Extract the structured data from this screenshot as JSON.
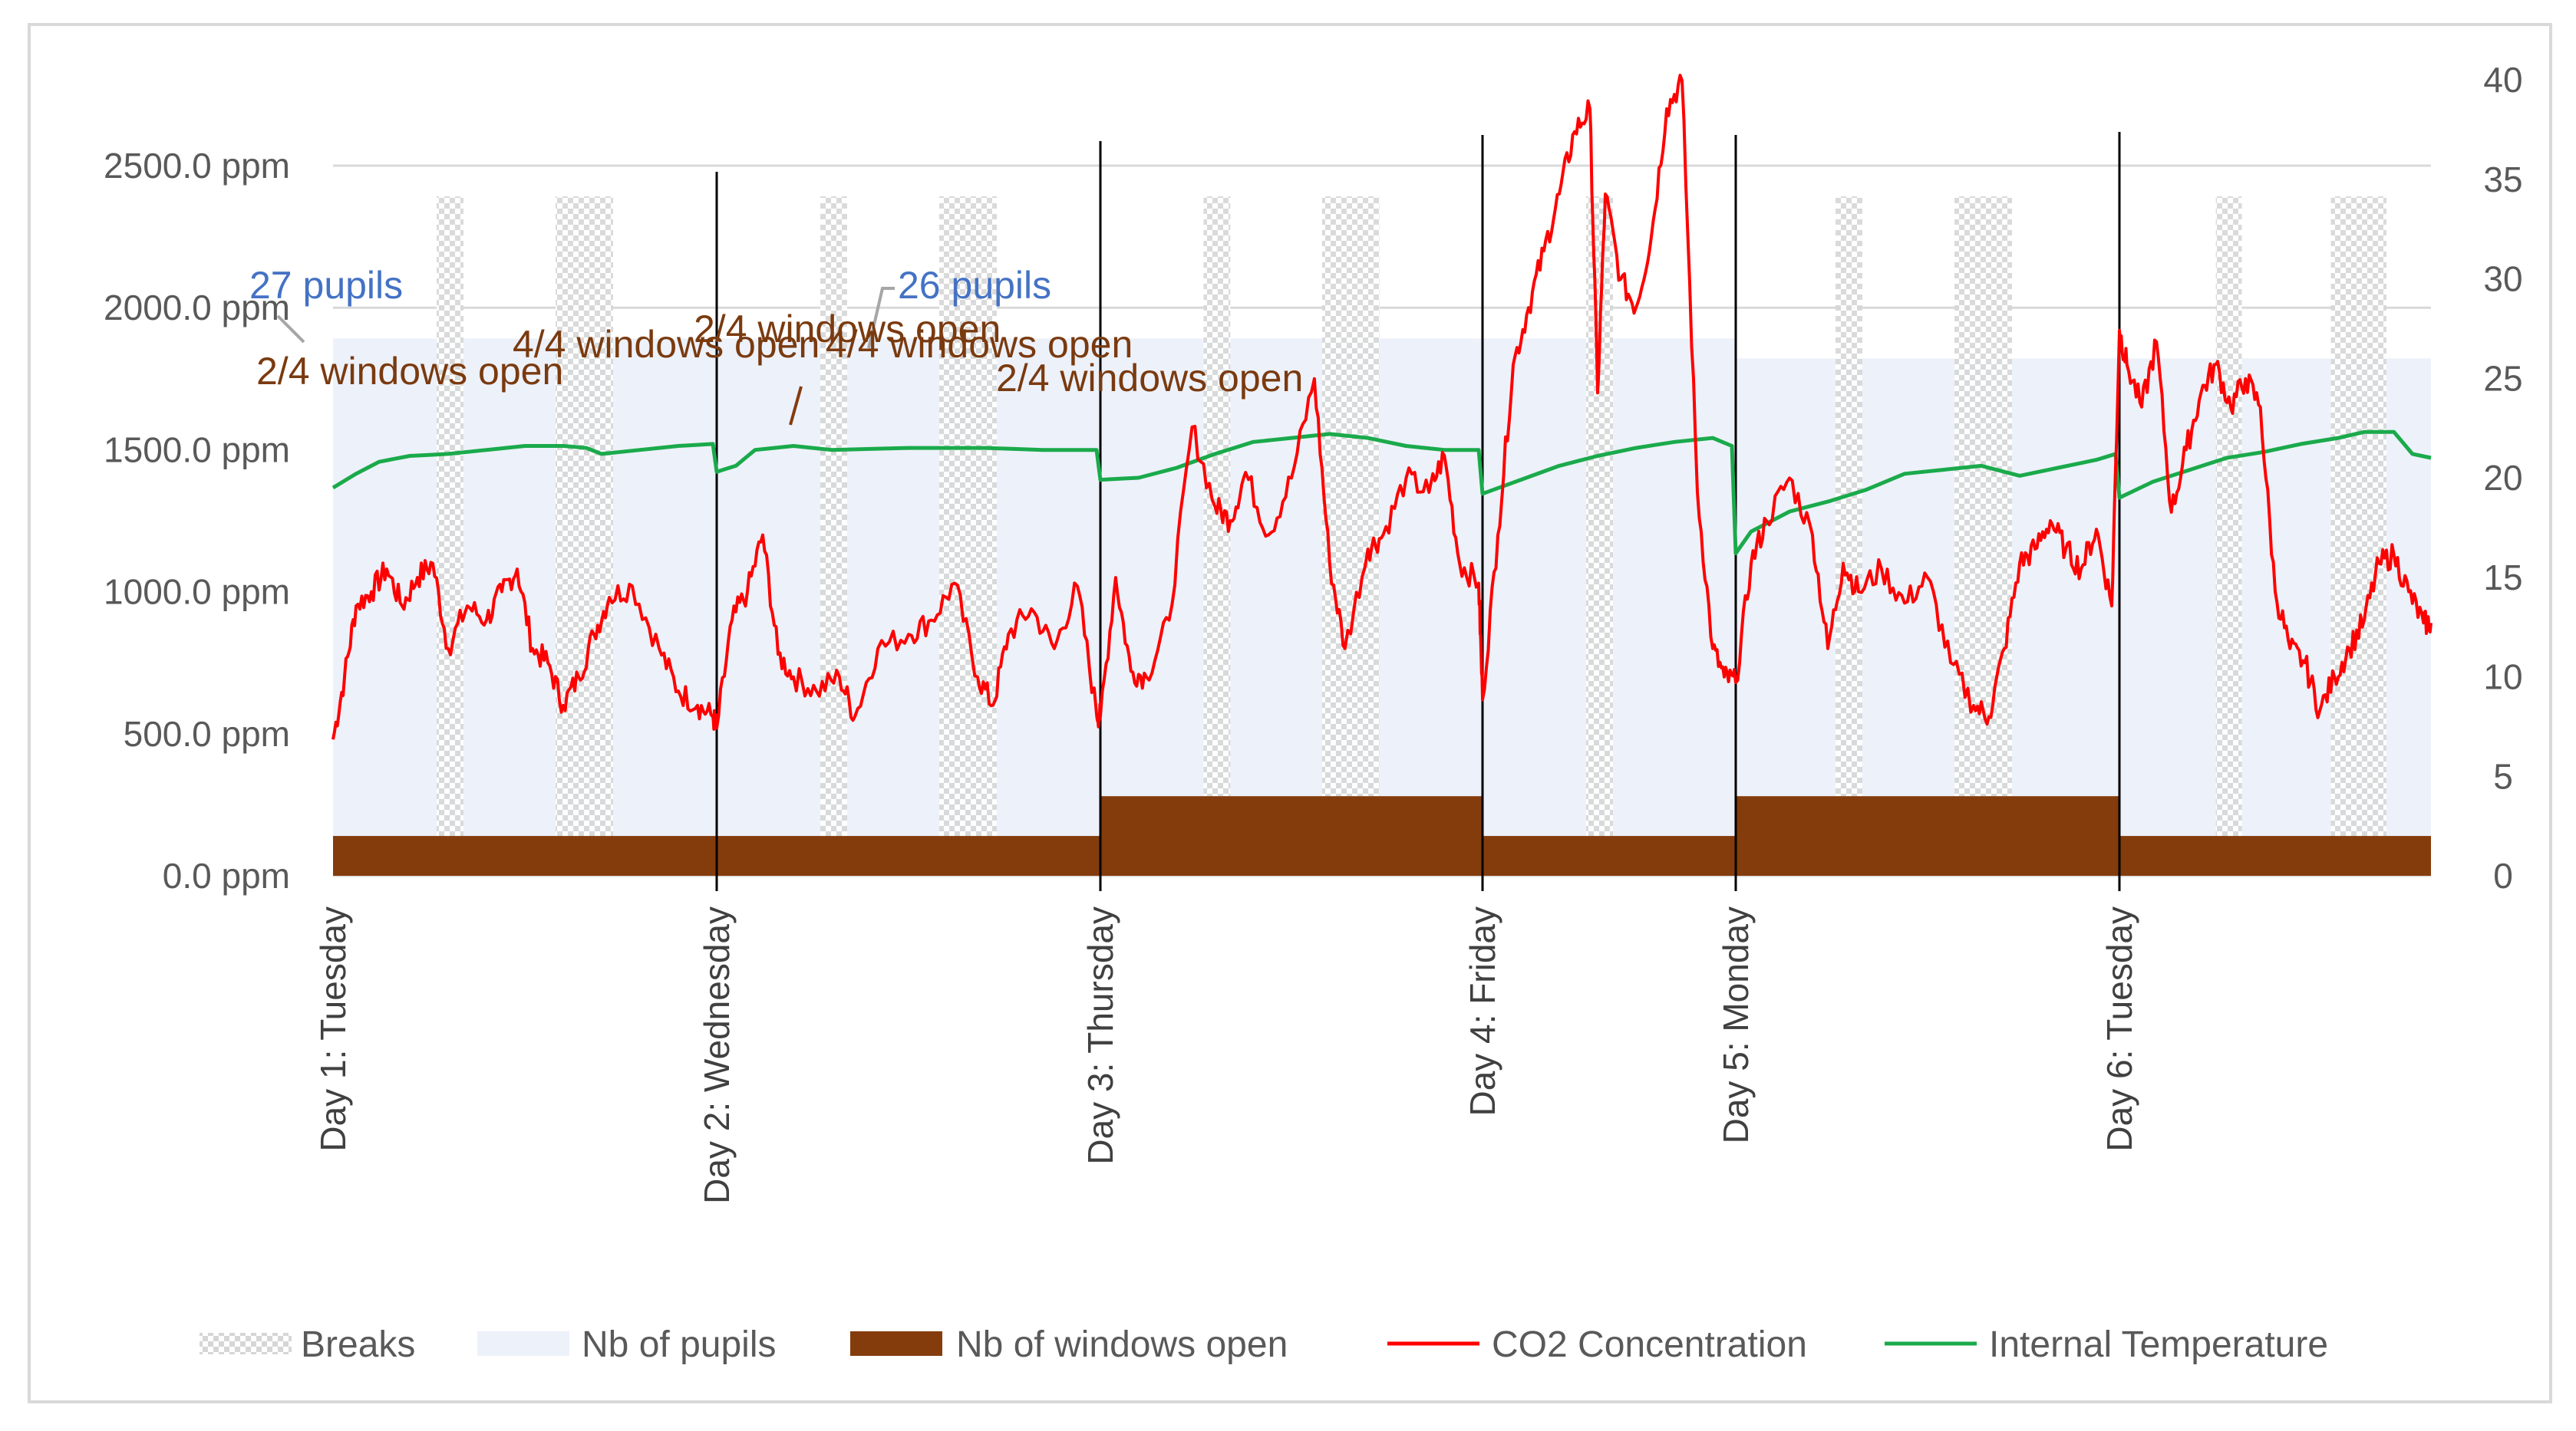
{
  "chart_data": {
    "type": "line",
    "title": "",
    "xlabel": "",
    "ylabel": "",
    "ylim": [
      0,
      2800
    ],
    "y2lim": [
      0,
      40
    ],
    "left_ticks": [
      "0.0 ppm",
      "500.0 ppm",
      "1000.0 ppm",
      "1500.0 ppm",
      "2000.0 ppm",
      "2500.0 ppm"
    ],
    "right_ticks": [
      "0",
      "5",
      "10",
      "15",
      "20",
      "25",
      "30",
      "35",
      "40"
    ],
    "days": [
      {
        "label": "Day 1: Tuesday",
        "start": 0
      },
      {
        "label": "Day 2: Wednesday",
        "start": 1
      },
      {
        "label": "Day 3: Thursday",
        "start": 2
      },
      {
        "label": "Day 4: Friday",
        "start": 3
      },
      {
        "label": "Day 5: Monday",
        "start": 3.66
      },
      {
        "label": "Day 6: Tuesday",
        "start": 4.66
      }
    ],
    "x_total_days": 5.5,
    "pupils_segments": [
      {
        "from": 0,
        "to": 3.66,
        "value": 27
      },
      {
        "from": 3.66,
        "to": 5.5,
        "value": 26
      }
    ],
    "windows_segments": [
      {
        "from": 0,
        "to": 2,
        "value": 2
      },
      {
        "from": 2,
        "to": 3,
        "value": 4
      },
      {
        "from": 3,
        "to": 3.66,
        "value": 2
      },
      {
        "from": 3.66,
        "to": 4.66,
        "value": 4
      },
      {
        "from": 4.66,
        "to": 5.5,
        "value": 2
      }
    ],
    "breaks": [
      [
        0.27,
        0.34
      ],
      [
        0.58,
        0.73
      ],
      [
        1.27,
        1.34
      ],
      [
        1.58,
        1.73
      ],
      [
        2.27,
        2.34
      ],
      [
        2.58,
        2.73
      ],
      [
        3.27,
        3.34
      ],
      [
        3.92,
        3.99
      ],
      [
        4.23,
        4.38
      ],
      [
        4.92,
        4.99
      ],
      [
        5.23,
        5.38
      ]
    ],
    "series": [
      {
        "name": "CO2 Concentration",
        "axis": "left",
        "unit": "ppm",
        "x": [
          0,
          0.03,
          0.06,
          0.1,
          0.14,
          0.18,
          0.22,
          0.26,
          0.3,
          0.35,
          0.4,
          0.44,
          0.48,
          0.52,
          0.56,
          0.6,
          0.64,
          0.68,
          0.72,
          0.78,
          0.85,
          0.9,
          0.95,
          0.99,
          1.0,
          1.04,
          1.08,
          1.12,
          1.16,
          1.2,
          1.26,
          1.32,
          1.36,
          1.42,
          1.5,
          1.56,
          1.62,
          1.68,
          1.72,
          1.76,
          1.82,
          1.88,
          1.94,
          1.99,
          2.0,
          2.04,
          2.08,
          2.12,
          2.18,
          2.24,
          2.3,
          2.34,
          2.38,
          2.44,
          2.5,
          2.56,
          2.6,
          2.64,
          2.7,
          2.74,
          2.8,
          2.86,
          2.9,
          2.94,
          2.99,
          3.0,
          3.04,
          3.08,
          3.12,
          3.16,
          3.2,
          3.24,
          3.28,
          3.3,
          3.32,
          3.36,
          3.4,
          3.44,
          3.48,
          3.52,
          3.56,
          3.6,
          3.63,
          3.66,
          3.7,
          3.74,
          3.8,
          3.86,
          3.9,
          3.94,
          3.98,
          4.04,
          4.1,
          4.16,
          4.22,
          4.28,
          4.32,
          4.36,
          4.4,
          4.44,
          4.48,
          4.52,
          4.56,
          4.6,
          4.64,
          4.66,
          4.68,
          4.72,
          4.76,
          4.8,
          4.84,
          4.88,
          4.92,
          4.96,
          5.0,
          5.04,
          5.08,
          5.12,
          5.16,
          5.2,
          5.24,
          5.28,
          5.32,
          5.36,
          5.4,
          5.44,
          5.48,
          5.5
        ],
        "values": [
          480,
          700,
          950,
          1000,
          1080,
          950,
          1050,
          1100,
          800,
          950,
          900,
          1000,
          1080,
          800,
          750,
          600,
          700,
          850,
          980,
          1020,
          800,
          650,
          600,
          560,
          520,
          900,
          1000,
          1200,
          780,
          700,
          650,
          700,
          560,
          800,
          850,
          900,
          1030,
          700,
          600,
          850,
          940,
          800,
          1020,
          570,
          560,
          1050,
          720,
          700,
          900,
          1580,
          1300,
          1250,
          1420,
          1200,
          1400,
          1750,
          1100,
          800,
          1150,
          1200,
          1400,
          1350,
          1480,
          1100,
          1030,
          620,
          1200,
          1800,
          2000,
          2200,
          2400,
          2620,
          2700,
          1700,
          2400,
          2100,
          2000,
          2250,
          2700,
          2800,
          1350,
          800,
          700,
          680,
          1100,
          1250,
          1400,
          1200,
          800,
          1100,
          1000,
          1080,
          960,
          1050,
          750,
          600,
          560,
          800,
          1100,
          1150,
          1250,
          1150,
          1080,
          1220,
          950,
          1920,
          1800,
          1650,
          1880,
          1280,
          1500,
          1700,
          1800,
          1650,
          1750,
          1650,
          1000,
          800,
          750,
          580,
          700,
          800,
          900,
          1100,
          1130,
          1000,
          890,
          890
        ]
      },
      {
        "name": "Internal Temperature",
        "axis": "right",
        "unit": "°C",
        "x": [
          0,
          0.06,
          0.12,
          0.2,
          0.3,
          0.4,
          0.5,
          0.6,
          0.66,
          0.7,
          0.8,
          0.9,
          0.99,
          1.0,
          1.05,
          1.1,
          1.2,
          1.3,
          1.5,
          1.7,
          1.85,
          1.99,
          2.0,
          2.1,
          2.2,
          2.3,
          2.4,
          2.5,
          2.6,
          2.7,
          2.8,
          2.9,
          2.99,
          3.0,
          3.1,
          3.2,
          3.3,
          3.4,
          3.5,
          3.6,
          3.65,
          3.66,
          3.7,
          3.8,
          3.9,
          4.0,
          4.1,
          4.2,
          4.3,
          4.4,
          4.5,
          4.6,
          4.65,
          4.66,
          4.75,
          4.85,
          4.95,
          5.05,
          5.15,
          5.25,
          5.32,
          5.4,
          5.45,
          5.5
        ],
        "values": [
          19.5,
          20.2,
          20.8,
          21.1,
          21.2,
          21.4,
          21.6,
          21.6,
          21.5,
          21.2,
          21.4,
          21.6,
          21.7,
          20.3,
          20.6,
          21.4,
          21.6,
          21.4,
          21.5,
          21.5,
          21.4,
          21.4,
          19.9,
          20.0,
          20.5,
          21.2,
          21.8,
          22.0,
          22.2,
          22.0,
          21.6,
          21.4,
          21.4,
          19.2,
          19.9,
          20.6,
          21.1,
          21.5,
          21.8,
          22.0,
          21.6,
          16.2,
          17.3,
          18.3,
          18.8,
          19.4,
          20.2,
          20.4,
          20.6,
          20.1,
          20.5,
          20.9,
          21.2,
          19.0,
          19.8,
          20.4,
          21.0,
          21.3,
          21.7,
          22.0,
          22.3,
          22.3,
          21.2,
          21.0
        ]
      }
    ],
    "annotations": {
      "pupils_27": "27 pupils",
      "pupils_26": "26 pupils",
      "win_day1": "2/4 windows open",
      "win_day3": "4/4 windows open",
      "win_day4": "2/4 windows open",
      "win_day5": "4/4 windows open",
      "win_day6": "2/4 windows open"
    },
    "legend": [
      {
        "label": "Breaks",
        "kind": "breaks"
      },
      {
        "label": "Nb of pupils",
        "kind": "pupils"
      },
      {
        "label": "Nb of windows open",
        "kind": "windows"
      },
      {
        "label": "CO2 Concentration",
        "kind": "co2"
      },
      {
        "label": "Internal Temperature",
        "kind": "temp"
      }
    ],
    "legend_position": "bottom",
    "colors": {
      "co2": "#ff0000",
      "temp": "#1aaa4b",
      "windows": "#843c0c",
      "pupils": "#edf1fa",
      "breaks": "#d9d9d9",
      "pupils_text": "#4472c4",
      "windows_text": "#843c0c",
      "axis_text": "#595959",
      "grid": "#d9d9d9"
    }
  }
}
